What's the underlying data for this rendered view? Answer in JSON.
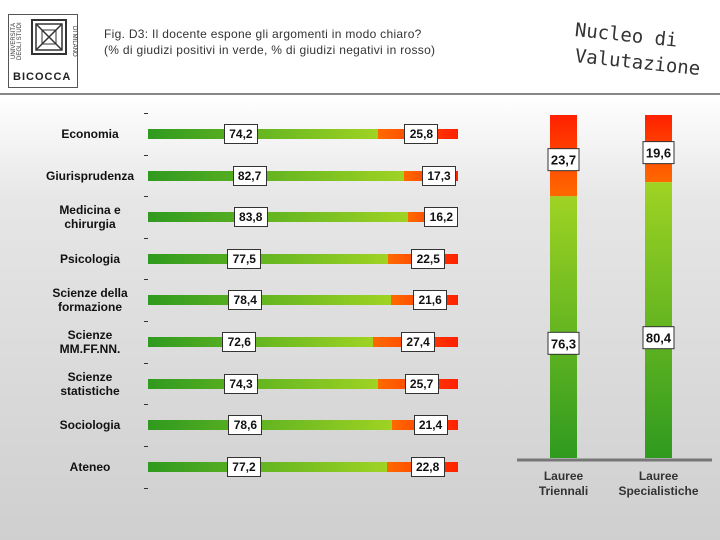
{
  "logo": {
    "name": "BICOCCA",
    "side_left": "UNIVERSITÀ DEGLI STUDI",
    "side_right": "DI MILANO"
  },
  "title": {
    "line1": "Fig. D3: Il docente espone gli argomenti in modo chiaro?",
    "line2": "(% di giudizi positivi in verde, % di giudizi negativi in rosso)"
  },
  "brand": {
    "line1": "Nucleo di",
    "line2": "Valutazione"
  },
  "colors": {
    "green": "#2f9a1f",
    "lime": "#9fd323",
    "orange": "#ff6a00",
    "red": "#ff2000"
  },
  "chart_data": [
    {
      "type": "bar",
      "orientation": "horizontal-stacked",
      "categories": [
        "Economia",
        "Giurisprudenza",
        "Medicina e chirurgia",
        "Psicologia",
        "Scienze della formazione",
        "Scienze MM.FF.NN.",
        "Scienze statistiche",
        "Sociologia",
        "Ateneo"
      ],
      "series": [
        {
          "values": [
            74.2,
            82.7,
            83.8,
            77.5,
            78.4,
            72.6,
            74.3,
            78.6,
            77.2
          ]
        },
        {
          "values": [
            25.8,
            17.3,
            16.2,
            22.5,
            21.6,
            27.4,
            25.7,
            21.4,
            22.8
          ]
        }
      ],
      "value_labels": [
        [
          "74,2",
          "82,7",
          "83,8",
          "77,5",
          "78,4",
          "72,6",
          "74,3",
          "78,6",
          "77,2"
        ],
        [
          "25,8",
          "17,3",
          "16,2",
          "22,5",
          "21,6",
          "27,4",
          "25,7",
          "21,4",
          "22,8"
        ]
      ],
      "xlim": [
        0,
        100
      ]
    },
    {
      "type": "bar",
      "orientation": "vertical-stacked",
      "categories": [
        "Lauree Triennali",
        "Lauree Specialistiche"
      ],
      "series": [
        {
          "values": [
            76.3,
            80.4
          ]
        },
        {
          "values": [
            23.7,
            19.6
          ]
        }
      ],
      "value_labels": [
        [
          "76,3",
          "80,4"
        ],
        [
          "23,7",
          "19,6"
        ]
      ],
      "ylim": [
        0,
        100
      ]
    }
  ]
}
